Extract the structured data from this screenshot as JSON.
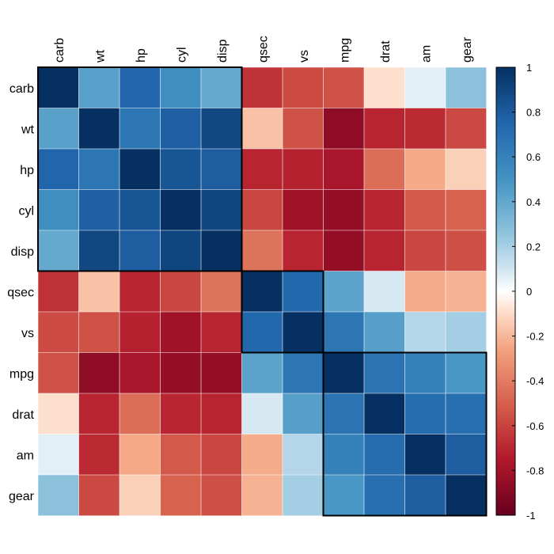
{
  "chart_data": {
    "type": "heatmap",
    "title": "",
    "xlabel": "",
    "ylabel": "",
    "rows": [
      "carb",
      "wt",
      "hp",
      "cyl",
      "disp",
      "qsec",
      "vs",
      "mpg",
      "drat",
      "am",
      "gear"
    ],
    "columns": [
      "carb",
      "wt",
      "hp",
      "cyl",
      "disp",
      "qsec",
      "vs",
      "mpg",
      "drat",
      "am",
      "gear"
    ],
    "values": [
      [
        1.0,
        0.43,
        0.75,
        0.53,
        0.39,
        -0.66,
        -0.57,
        -0.55,
        -0.09,
        0.06,
        0.27
      ],
      [
        0.43,
        1.0,
        0.66,
        0.78,
        0.89,
        -0.17,
        -0.55,
        -0.87,
        -0.71,
        -0.69,
        -0.58
      ],
      [
        0.75,
        0.66,
        1.0,
        0.83,
        0.79,
        -0.71,
        -0.72,
        -0.78,
        -0.45,
        -0.24,
        -0.13
      ],
      [
        0.53,
        0.78,
        0.83,
        1.0,
        0.9,
        -0.59,
        -0.81,
        -0.85,
        -0.7,
        -0.52,
        -0.49
      ],
      [
        0.39,
        0.89,
        0.79,
        0.9,
        1.0,
        -0.43,
        -0.71,
        -0.85,
        -0.71,
        -0.59,
        -0.56
      ],
      [
        -0.66,
        -0.17,
        -0.71,
        -0.59,
        -0.43,
        1.0,
        0.74,
        0.42,
        0.09,
        -0.23,
        -0.21
      ],
      [
        -0.57,
        -0.55,
        -0.72,
        -0.81,
        -0.71,
        0.74,
        1.0,
        0.66,
        0.44,
        0.17,
        0.21
      ],
      [
        -0.55,
        -0.87,
        -0.78,
        -0.85,
        -0.85,
        0.42,
        0.66,
        1.0,
        0.68,
        0.6,
        0.48
      ],
      [
        -0.09,
        -0.71,
        -0.45,
        -0.7,
        -0.71,
        0.09,
        0.44,
        0.68,
        1.0,
        0.71,
        0.7
      ],
      [
        0.06,
        -0.69,
        -0.24,
        -0.52,
        -0.59,
        -0.23,
        0.17,
        0.6,
        0.71,
        1.0,
        0.79
      ],
      [
        0.27,
        -0.58,
        -0.13,
        -0.49,
        -0.56,
        -0.21,
        0.21,
        0.48,
        0.7,
        0.79,
        1.0
      ]
    ],
    "clusters": [
      {
        "start": "carb",
        "end": "disp"
      },
      {
        "start": "qsec",
        "end": "vs"
      },
      {
        "start": "mpg",
        "end": "gear"
      }
    ],
    "color_scale": {
      "min": -1,
      "max": 1,
      "stops": [
        {
          "value": -1,
          "color": "#67001f"
        },
        {
          "value": -0.75,
          "color": "#b2182b"
        },
        {
          "value": -0.5,
          "color": "#d6604d"
        },
        {
          "value": -0.25,
          "color": "#f4a582"
        },
        {
          "value": -0.1,
          "color": "#fddbc7"
        },
        {
          "value": 0,
          "color": "#ffffff"
        },
        {
          "value": 0.1,
          "color": "#d1e5f0"
        },
        {
          "value": 0.25,
          "color": "#92c5de"
        },
        {
          "value": 0.5,
          "color": "#4393c3"
        },
        {
          "value": 0.75,
          "color": "#2166ac"
        },
        {
          "value": 1,
          "color": "#053061"
        }
      ]
    },
    "colorbar_ticks": [
      {
        "value": 1,
        "label": "1"
      },
      {
        "value": 0.8,
        "label": "0.8"
      },
      {
        "value": 0.6,
        "label": "0.6"
      },
      {
        "value": 0.4,
        "label": "0.4"
      },
      {
        "value": 0.2,
        "label": "0.2"
      },
      {
        "value": 0,
        "label": "0"
      },
      {
        "value": -0.2,
        "label": "-0.2"
      },
      {
        "value": -0.4,
        "label": "-0.4"
      },
      {
        "value": -0.6,
        "label": "-0.6"
      },
      {
        "value": -0.8,
        "label": "-0.8"
      },
      {
        "value": -1,
        "label": "-1"
      }
    ],
    "legend": "right",
    "grid": false
  }
}
